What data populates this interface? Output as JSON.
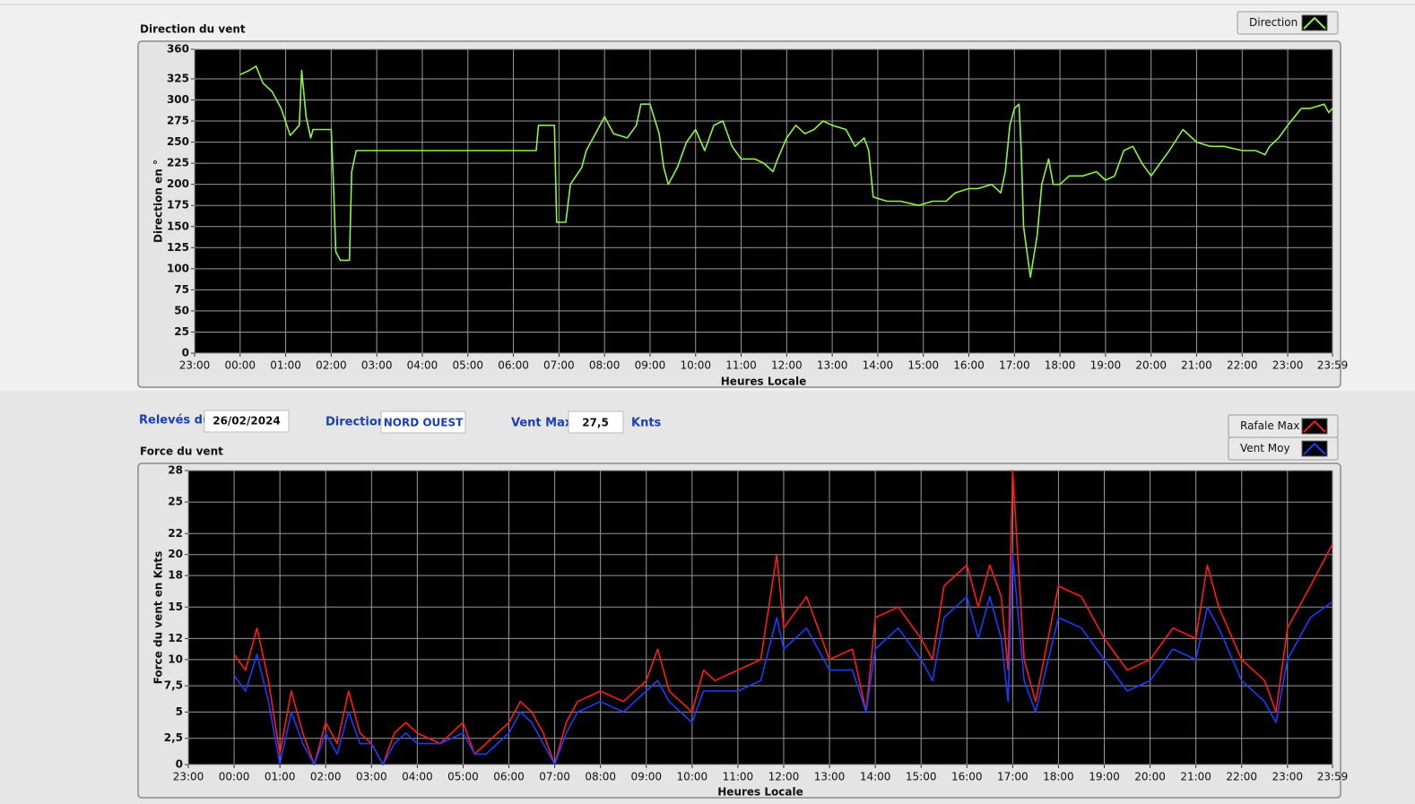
{
  "chart_data": [
    {
      "type": "line",
      "title": "Direction du vent",
      "ylabel": "Direction en °",
      "xlabel": "Heures Locale",
      "xlim": [
        -1,
        23.983
      ],
      "ylim": [
        0,
        360
      ],
      "grid": true,
      "xticks": [
        {
          "value": -1,
          "label": "23:00"
        },
        {
          "value": 0,
          "label": "00:00"
        },
        {
          "value": 1,
          "label": "01:00"
        },
        {
          "value": 2,
          "label": "02:00"
        },
        {
          "value": 3,
          "label": "03:00"
        },
        {
          "value": 4,
          "label": "04:00"
        },
        {
          "value": 5,
          "label": "05:00"
        },
        {
          "value": 6,
          "label": "06:00"
        },
        {
          "value": 7,
          "label": "07:00"
        },
        {
          "value": 8,
          "label": "08:00"
        },
        {
          "value": 9,
          "label": "09:00"
        },
        {
          "value": 10,
          "label": "10:00"
        },
        {
          "value": 11,
          "label": "11:00"
        },
        {
          "value": 12,
          "label": "12:00"
        },
        {
          "value": 13,
          "label": "13:00"
        },
        {
          "value": 14,
          "label": "14:00"
        },
        {
          "value": 15,
          "label": "15:00"
        },
        {
          "value": 16,
          "label": "16:00"
        },
        {
          "value": 17,
          "label": "17:00"
        },
        {
          "value": 18,
          "label": "18:00"
        },
        {
          "value": 19,
          "label": "19:00"
        },
        {
          "value": 20,
          "label": "20:00"
        },
        {
          "value": 21,
          "label": "21:00"
        },
        {
          "value": 22,
          "label": "22:00"
        },
        {
          "value": 23,
          "label": "23:00"
        },
        {
          "value": 23.983,
          "label": "23:59"
        }
      ],
      "yticks": [
        0,
        25,
        50,
        75,
        100,
        125,
        150,
        175,
        200,
        225,
        250,
        275,
        300,
        325,
        360
      ],
      "x": [
        0,
        0.2,
        0.35,
        0.5,
        0.7,
        0.9,
        1.1,
        1.3,
        1.35,
        1.45,
        1.55,
        1.6,
        2.0,
        2.05,
        2.1,
        2.2,
        2.4,
        2.45,
        2.55,
        6.5,
        6.55,
        6.9,
        6.95,
        7.15,
        7.25,
        7.5,
        7.6,
        7.8,
        8.0,
        8.2,
        8.5,
        8.7,
        8.8,
        9.0,
        9.2,
        9.3,
        9.4,
        9.6,
        9.8,
        10.0,
        10.2,
        10.4,
        10.6,
        10.8,
        11.0,
        11.3,
        11.5,
        11.7,
        11.8,
        12.0,
        12.2,
        12.4,
        12.6,
        12.8,
        13.0,
        13.3,
        13.5,
        13.7,
        13.8,
        13.9,
        14.2,
        14.5,
        14.9,
        15.2,
        15.5,
        15.7,
        16.0,
        16.2,
        16.5,
        16.7,
        16.8,
        16.9,
        17.0,
        17.1,
        17.15,
        17.2,
        17.35,
        17.5,
        17.6,
        17.75,
        17.85,
        18.0,
        18.2,
        18.5,
        18.8,
        19.0,
        19.2,
        19.4,
        19.6,
        19.8,
        20.0,
        20.2,
        20.4,
        20.7,
        21.0,
        21.3,
        21.6,
        22.0,
        22.3,
        22.5,
        22.6,
        22.8,
        23.0,
        23.3,
        23.5,
        23.8,
        23.9,
        23.983
      ],
      "series": [
        {
          "name": "Direction",
          "color": "#8cf542",
          "values": [
            330,
            335,
            340,
            320,
            310,
            290,
            258,
            270,
            335,
            280,
            255,
            265,
            265,
            200,
            120,
            110,
            110,
            215,
            240,
            240,
            270,
            270,
            155,
            155,
            200,
            220,
            240,
            260,
            280,
            260,
            255,
            270,
            295,
            295,
            260,
            220,
            200,
            220,
            250,
            265,
            240,
            270,
            275,
            245,
            230,
            230,
            225,
            215,
            230,
            255,
            270,
            260,
            265,
            275,
            270,
            265,
            245,
            255,
            240,
            185,
            180,
            180,
            175,
            180,
            180,
            190,
            195,
            195,
            200,
            190,
            215,
            270,
            290,
            295,
            240,
            150,
            90,
            140,
            200,
            230,
            200,
            200,
            210,
            210,
            215,
            205,
            210,
            240,
            245,
            225,
            210,
            225,
            240,
            265,
            250,
            245,
            245,
            240,
            240,
            235,
            245,
            255,
            270,
            290,
            290,
            295,
            285,
            290
          ]
        }
      ]
    },
    {
      "type": "line",
      "title": "Force du vent",
      "ylabel": "Force du vent en Knts",
      "xlabel": "Heures Locale",
      "xlim": [
        -1,
        23.983
      ],
      "ylim": [
        0,
        28
      ],
      "grid": true,
      "xticks": [
        {
          "value": -1,
          "label": "23:00"
        },
        {
          "value": 0,
          "label": "00:00"
        },
        {
          "value": 1,
          "label": "01:00"
        },
        {
          "value": 2,
          "label": "02:00"
        },
        {
          "value": 3,
          "label": "03:00"
        },
        {
          "value": 4,
          "label": "04:00"
        },
        {
          "value": 5,
          "label": "05:00"
        },
        {
          "value": 6,
          "label": "06:00"
        },
        {
          "value": 7,
          "label": "07:00"
        },
        {
          "value": 8,
          "label": "08:00"
        },
        {
          "value": 9,
          "label": "09:00"
        },
        {
          "value": 10,
          "label": "10:00"
        },
        {
          "value": 11,
          "label": "11:00"
        },
        {
          "value": 12,
          "label": "12:00"
        },
        {
          "value": 13,
          "label": "13:00"
        },
        {
          "value": 14,
          "label": "14:00"
        },
        {
          "value": 15,
          "label": "15:00"
        },
        {
          "value": 16,
          "label": "16:00"
        },
        {
          "value": 17,
          "label": "17:00"
        },
        {
          "value": 18,
          "label": "18:00"
        },
        {
          "value": 19,
          "label": "19:00"
        },
        {
          "value": 20,
          "label": "20:00"
        },
        {
          "value": 21,
          "label": "21:00"
        },
        {
          "value": 22,
          "label": "22:00"
        },
        {
          "value": 23,
          "label": "23:00"
        },
        {
          "value": 23.983,
          "label": "23:59"
        }
      ],
      "yticks": [
        0,
        {
          "value": 2.5,
          "label": "2,5"
        },
        5,
        {
          "value": 7.5,
          "label": "7,5"
        },
        10,
        12,
        15,
        18,
        20,
        22,
        25,
        28
      ],
      "x": [
        0,
        0.25,
        0.5,
        0.75,
        1.0,
        1.25,
        1.5,
        1.75,
        2.0,
        2.25,
        2.5,
        2.75,
        3.0,
        3.25,
        3.5,
        3.75,
        4.0,
        4.5,
        5.0,
        5.25,
        5.5,
        6.0,
        6.25,
        6.5,
        6.75,
        7.0,
        7.25,
        7.5,
        8.0,
        8.5,
        9.0,
        9.25,
        9.5,
        10.0,
        10.25,
        10.5,
        11.0,
        11.5,
        11.85,
        12.0,
        12.5,
        13.0,
        13.5,
        13.8,
        14.0,
        14.5,
        15.0,
        15.25,
        15.5,
        16.0,
        16.25,
        16.5,
        16.75,
        16.9,
        17.0,
        17.25,
        17.5,
        18.0,
        18.5,
        19.0,
        19.5,
        20.0,
        20.5,
        21.0,
        21.25,
        21.5,
        22.0,
        22.5,
        22.75,
        23.0,
        23.5,
        23.983
      ],
      "series": [
        {
          "name": "Rafale Max",
          "color": "#ff1a1a",
          "values": [
            10.5,
            9,
            13,
            8,
            1,
            7,
            3,
            0,
            4,
            2,
            7,
            3,
            2,
            0,
            3,
            4,
            3,
            2,
            4,
            1,
            2,
            4,
            6,
            5,
            3,
            0,
            4,
            6,
            7,
            6,
            8,
            11,
            7,
            5,
            9,
            8,
            9,
            10,
            20,
            13,
            16,
            10,
            11,
            5,
            14,
            15,
            12,
            10,
            17,
            19,
            15,
            19,
            16,
            9,
            28,
            10,
            6,
            17,
            16,
            12,
            9,
            10,
            13,
            12,
            19,
            15,
            10,
            8,
            5,
            13,
            17,
            21
          ]
        },
        {
          "name": "Vent Moy",
          "color": "#1a3cff",
          "values": [
            8.5,
            7,
            10.5,
            6,
            0,
            5,
            2,
            0,
            3,
            1,
            5,
            2,
            2,
            0,
            2,
            3,
            2,
            2,
            3,
            1,
            1,
            3,
            5,
            4,
            2,
            0,
            3,
            5,
            6,
            5,
            7,
            8,
            6,
            4,
            7,
            7,
            7,
            8,
            14,
            11,
            13,
            9,
            9,
            5,
            11,
            13,
            10,
            8,
            14,
            16,
            12,
            16,
            12,
            6,
            20,
            8,
            5,
            14,
            13,
            10,
            7,
            8,
            11,
            10,
            15,
            13,
            8,
            6,
            4,
            10,
            14,
            15.5
          ]
        }
      ]
    }
  ],
  "controls": {
    "releves_label": "Relevés du",
    "date": "26/02/2024",
    "direction_label": "Direction",
    "direction": "NORD OUEST",
    "vent_max_label": "Vent Max",
    "vent_max": "27,5",
    "unit": "Knts"
  }
}
